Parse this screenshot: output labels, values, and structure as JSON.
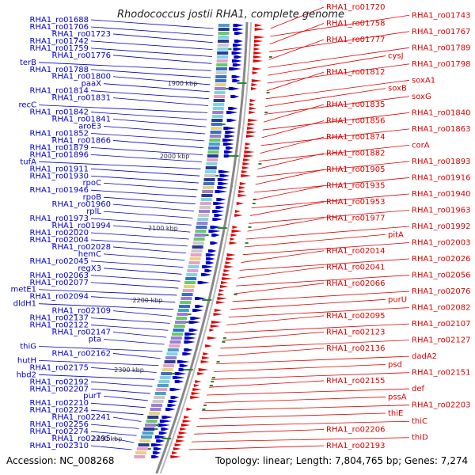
{
  "title": "Rhodococcus jostii RHA1, complete genome",
  "accession": "Accession: NC_008268",
  "summary": "Topology: linear; Length: 7,804,765 bp; Genes: 7,274",
  "colors": {
    "left_strand": "#0000c8",
    "right_strand": "#e00000",
    "backbone": "#888888",
    "tick": "#2a8a2a"
  },
  "kbp_markers": [
    "1900 kbp",
    "2000 kbp",
    "2100 kbp",
    "2200 kbp",
    "2300 kbp",
    "2400 kbp"
  ],
  "left_labels": [
    "RHA1_ro01688",
    "RHA1_ro01706",
    "RHA1_ro01723",
    "RHA1_ro01742",
    "RHA1_ro01759",
    "RHA1_ro01776",
    "terB",
    "RHA1_ro01788",
    "RHA1_ro01800",
    "paaX",
    "RHA1_ro01814",
    "RHA1_ro01831",
    "recC",
    "RHA1_ro01842",
    "RHA1_ro01841",
    "aroE3",
    "RHA1_ro01852",
    "RHA1_ro01866",
    "RHA1_ro01879",
    "RHA1_ro01896",
    "tufA",
    "RHA1_ro01911",
    "RHA1_ro01930",
    "rpoC",
    "RHA1_ro01946",
    "rpoB",
    "RHA1_ro01960",
    "rplL",
    "RHA1_ro01973",
    "RHA1_ro01994",
    "RHA1_ro02020",
    "RHA1_ro02004",
    "RHA1_ro02028",
    "hemC",
    "RHA1_ro02045",
    "regX3",
    "RHA1_ro02063",
    "RHA1_ro02077",
    "metE1",
    "RHA1_ro02094",
    "dldH1",
    "RHA1_ro02109",
    "RHA1_ro02137",
    "RHA1_ro02122",
    "RHA1_ro02147",
    "pta",
    "thiG",
    "RHA1_ro02162",
    "hutH",
    "RHA1_ro02175",
    "hbd2",
    "RHA1_ro02192",
    "RHA1_ro02207",
    "purT",
    "RHA1_ro02210",
    "RHA1_ro02224",
    "RHA1_ro02241",
    "RHA1_ro02256",
    "RHA1_ro02274",
    "RHA1_ro02295",
    "RHA1_ro02310"
  ],
  "right_labels": [
    "RHA1_ro01720",
    "RHA1_ro01743",
    "RHA1_ro01758",
    "RHA1_ro01767",
    "RHA1_ro01777",
    "RHA1_ro01789",
    "cysJ",
    "RHA1_ro01798",
    "RHA1_ro01812",
    "soxA1",
    "soxB",
    "soxG",
    "RHA1_ro01835",
    "RHA1_ro01840",
    "RHA1_ro01856",
    "RHA1_ro01863",
    "RHA1_ro01874",
    "corA",
    "RHA1_ro01882",
    "RHA1_ro01893",
    "RHA1_ro01905",
    "RHA1_ro01916",
    "RHA1_ro01935",
    "RHA1_ro01940",
    "RHA1_ro01953",
    "RHA1_ro01963",
    "RHA1_ro01977",
    "RHA1_ro01992",
    "pitA",
    "RHA1_ro02003",
    "RHA1_ro02014",
    "RHA1_ro02026",
    "RHA1_ro02041",
    "RHA1_ro02056",
    "RHA1_ro02066",
    "RHA1_ro02076",
    "purU",
    "RHA1_ro02082",
    "RHA1_ro02095",
    "RHA1_ro02107",
    "RHA1_ro02123",
    "RHA1_ro02127",
    "RHA1_ro02136",
    "dadA2",
    "psd",
    "RHA1_ro02151",
    "RHA1_ro02155",
    "def",
    "pssA",
    "RHA1_ro02203",
    "thiE",
    "thiC",
    "RHA1_ro02206",
    "thiD",
    "RHA1_ro02193"
  ]
}
